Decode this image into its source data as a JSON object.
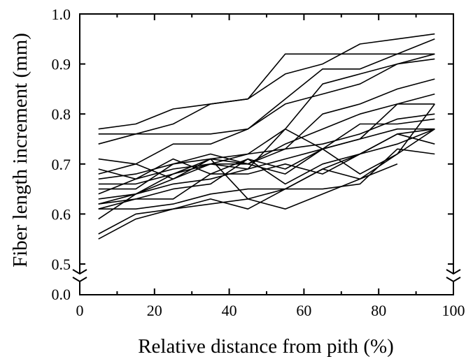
{
  "chart_data": {
    "type": "line",
    "title": "",
    "xlabel": "Relative distance from pith (%)",
    "ylabel": "Fiber length increment (mm)",
    "xlim": [
      0,
      100
    ],
    "ylim": [
      0.5,
      1.0
    ],
    "y_axis_break": true,
    "y_break_lower_label": "0.0",
    "x_ticks": [
      "0",
      "20",
      "40",
      "60",
      "80",
      "100"
    ],
    "y_ticks": [
      "0.5",
      "0.6",
      "0.7",
      "0.8",
      "0.9",
      "1.0"
    ],
    "grid": false,
    "legend": "none",
    "line_color": "#000000",
    "series": [
      {
        "x": [
          5,
          15,
          25,
          35,
          45,
          55,
          65,
          75,
          85,
          95
        ],
        "y": [
          0.77,
          0.78,
          0.81,
          0.82,
          0.83,
          0.92,
          0.92,
          0.92,
          0.92,
          0.92
        ]
      },
      {
        "x": [
          5,
          15,
          25,
          35,
          45,
          55,
          65,
          75,
          85,
          95
        ],
        "y": [
          0.74,
          0.76,
          0.78,
          0.82,
          0.83,
          0.88,
          0.9,
          0.94,
          0.95,
          0.96
        ]
      },
      {
        "x": [
          5,
          15,
          25,
          35,
          45,
          55,
          65,
          75,
          85,
          95
        ],
        "y": [
          0.76,
          0.76,
          0.76,
          0.76,
          0.77,
          0.83,
          0.89,
          0.89,
          0.92,
          0.95
        ]
      },
      {
        "x": [
          5,
          15,
          25,
          35,
          45,
          55,
          65,
          75,
          85,
          95
        ],
        "y": [
          0.68,
          0.7,
          0.74,
          0.74,
          0.77,
          0.82,
          0.84,
          0.86,
          0.9,
          0.92
        ]
      },
      {
        "x": [
          5,
          15,
          25,
          35,
          45,
          55,
          65,
          75,
          85,
          95
        ],
        "y": [
          0.62,
          0.64,
          0.67,
          0.7,
          0.72,
          0.77,
          0.86,
          0.88,
          0.9,
          0.91
        ]
      },
      {
        "x": [
          5,
          15,
          25,
          35,
          45,
          55,
          65,
          75,
          85,
          95
        ],
        "y": [
          0.71,
          0.7,
          0.67,
          0.71,
          0.7,
          0.73,
          0.8,
          0.82,
          0.85,
          0.87
        ]
      },
      {
        "x": [
          5,
          15,
          25,
          35,
          45,
          55,
          65,
          75,
          85,
          95
        ],
        "y": [
          0.65,
          0.65,
          0.7,
          0.72,
          0.7,
          0.74,
          0.77,
          0.8,
          0.82,
          0.84
        ]
      },
      {
        "x": [
          5,
          15,
          25,
          35,
          45,
          55,
          65,
          75,
          85,
          95
        ],
        "y": [
          0.69,
          0.67,
          0.71,
          0.68,
          0.71,
          0.69,
          0.73,
          0.75,
          0.82,
          0.82
        ]
      },
      {
        "x": [
          5,
          15,
          25,
          35,
          45,
          55,
          65,
          75,
          85,
          95
        ],
        "y": [
          0.67,
          0.68,
          0.7,
          0.71,
          0.72,
          0.73,
          0.74,
          0.76,
          0.79,
          0.8
        ]
      },
      {
        "x": [
          5,
          15,
          25,
          35,
          45,
          55,
          65,
          75,
          85,
          95
        ],
        "y": [
          0.64,
          0.67,
          0.69,
          0.7,
          0.69,
          0.77,
          0.73,
          0.68,
          0.72,
          0.82
        ]
      },
      {
        "x": [
          5,
          15,
          25,
          35,
          45,
          55,
          65,
          75,
          85,
          95
        ],
        "y": [
          0.66,
          0.66,
          0.68,
          0.7,
          0.7,
          0.68,
          0.73,
          0.78,
          0.78,
          0.79
        ]
      },
      {
        "x": [
          5,
          15,
          25,
          35,
          45,
          55,
          65,
          75,
          85,
          95
        ],
        "y": [
          0.63,
          0.64,
          0.66,
          0.67,
          0.69,
          0.71,
          0.73,
          0.75,
          0.77,
          0.77
        ]
      },
      {
        "x": [
          5,
          15,
          25,
          35,
          45,
          55,
          65,
          75,
          85,
          95
        ],
        "y": [
          0.62,
          0.63,
          0.63,
          0.68,
          0.68,
          0.7,
          0.68,
          0.72,
          0.74,
          0.77
        ]
      },
      {
        "x": [
          5,
          15,
          25,
          35,
          45,
          55,
          65,
          75,
          85,
          95
        ],
        "y": [
          0.61,
          0.63,
          0.65,
          0.66,
          0.71,
          0.66,
          0.7,
          0.72,
          0.76,
          0.74
        ]
      },
      {
        "x": [
          5,
          15,
          25,
          35,
          45,
          55,
          65,
          75,
          85,
          95
        ],
        "y": [
          0.61,
          0.61,
          0.62,
          0.64,
          0.65,
          0.65,
          0.65,
          0.66,
          0.73,
          0.72
        ]
      },
      {
        "x": [
          5,
          15,
          25,
          35,
          45,
          55,
          65,
          75,
          85
        ],
        "y": [
          0.59,
          0.64,
          0.68,
          0.71,
          0.63,
          0.65,
          0.69,
          0.67,
          0.7
        ]
      },
      {
        "x": [
          5,
          15,
          25,
          35,
          45,
          55,
          65,
          75,
          85,
          95
        ],
        "y": [
          0.56,
          0.6,
          0.61,
          0.63,
          0.61,
          0.65,
          0.69,
          0.72,
          0.76,
          0.77
        ]
      },
      {
        "x": [
          5,
          15,
          25,
          35,
          45,
          55,
          65,
          75,
          85,
          95
        ],
        "y": [
          0.55,
          0.59,
          0.61,
          0.62,
          0.63,
          0.61,
          0.64,
          0.67,
          0.72,
          0.77
        ]
      }
    ]
  }
}
